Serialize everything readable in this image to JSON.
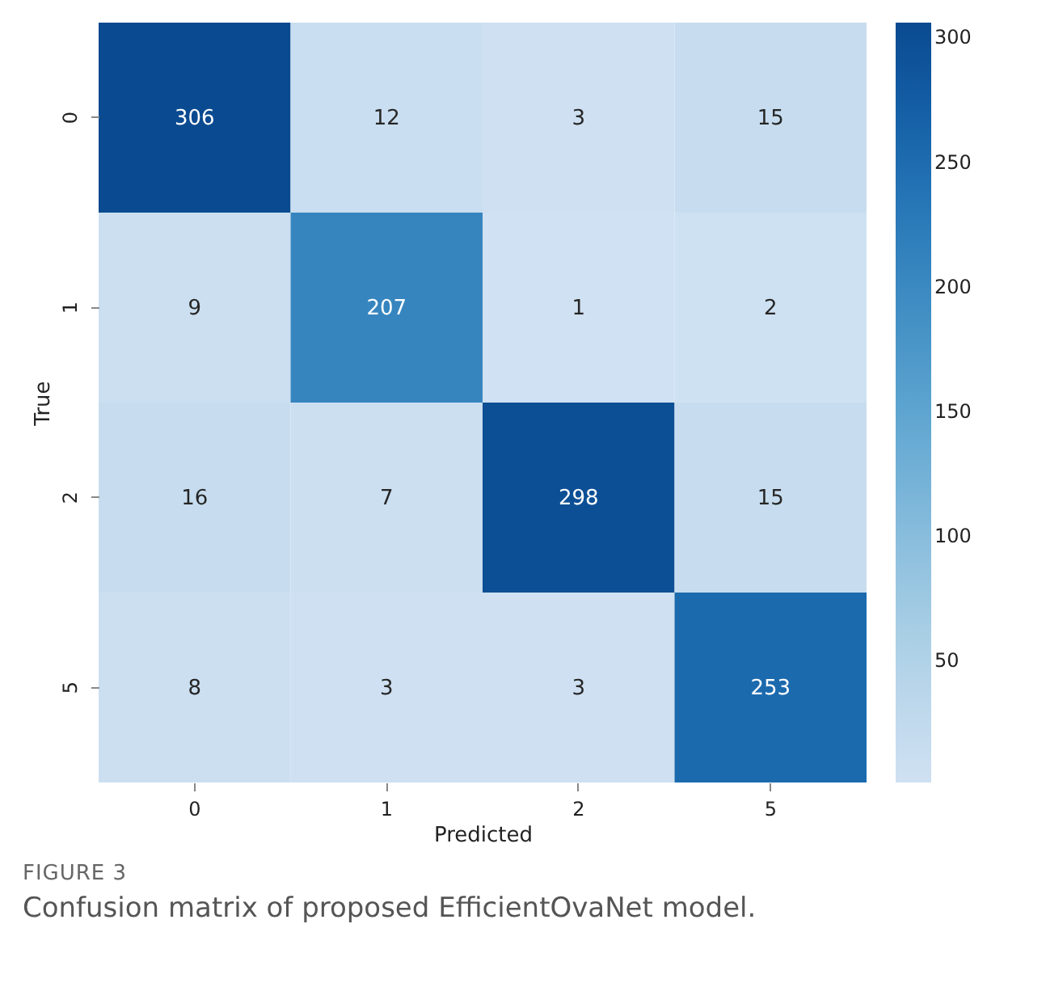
{
  "chart_data": {
    "type": "heatmap",
    "xlabel": "Predicted",
    "ylabel": "True",
    "categories": [
      "0",
      "1",
      "2",
      "5"
    ],
    "y_categories": [
      "0",
      "1",
      "2",
      "5"
    ],
    "cells": [
      [
        306,
        12,
        3,
        15
      ],
      [
        9,
        207,
        1,
        2
      ],
      [
        16,
        7,
        298,
        15
      ],
      [
        8,
        3,
        3,
        253
      ]
    ],
    "clim": [
      1,
      306
    ],
    "cticks": [
      50,
      100,
      150,
      200,
      250,
      300
    ],
    "data_labels": true,
    "annotations": [
      "FIGURE 3",
      "Confusion matrix of proposed EfficientOvaNet model."
    ]
  }
}
